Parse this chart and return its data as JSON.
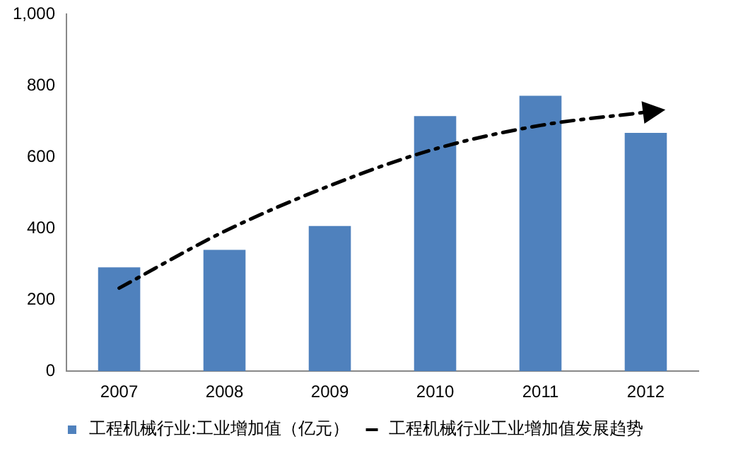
{
  "chart_data": {
    "type": "bar",
    "categories": [
      "2007",
      "2008",
      "2009",
      "2010",
      "2011",
      "2012"
    ],
    "series": [
      {
        "name": "工程机械行业:工业增加值（亿元）",
        "color": "#4f81bd",
        "values": [
          291,
          340,
          407,
          715,
          772,
          668
        ]
      },
      {
        "name": "工程机械行业工业增加值发展趋势",
        "type": "line",
        "color": "#000000",
        "line_style": "dashed",
        "values": [
          233,
          392,
          520,
          623,
          689,
          726
        ]
      }
    ],
    "ylim": [
      0,
      1000
    ],
    "yticks": [
      0,
      200,
      400,
      600,
      800,
      {
        "value": 1000,
        "label": "1,000"
      }
    ],
    "grid": false,
    "legend": "bottom"
  }
}
